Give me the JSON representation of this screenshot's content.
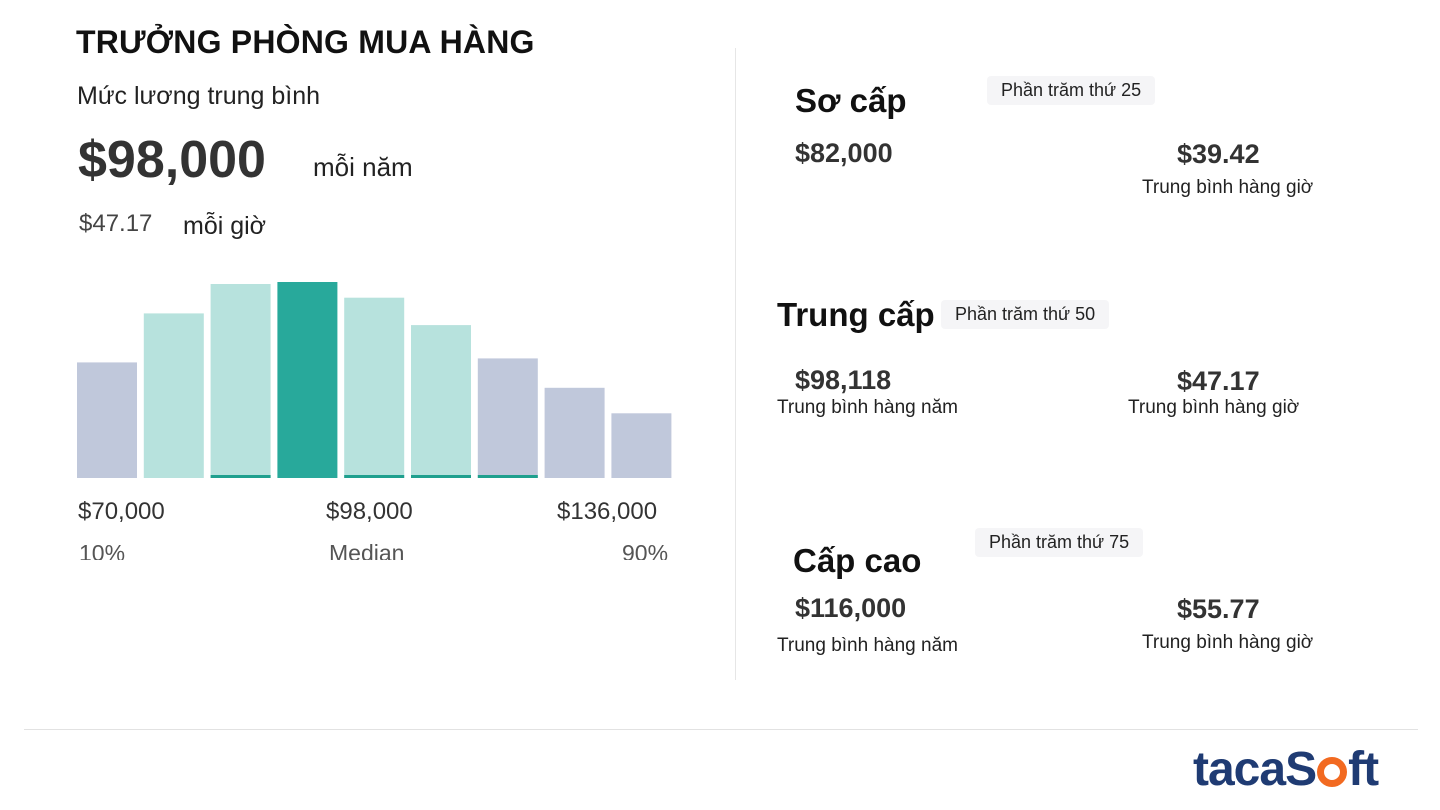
{
  "job_title": "TRƯỞNG PHÒNG MUA HÀNG",
  "summary": {
    "label": "Mức lương trung bình",
    "annual_value": "$98,000",
    "annual_unit": "mỗi năm",
    "hourly_value": "$47.17",
    "hourly_unit": "mỗi giờ"
  },
  "chart_data": {
    "type": "bar",
    "title": "",
    "categories": [
      "1",
      "2",
      "3",
      "4",
      "5",
      "6",
      "7",
      "8",
      "9"
    ],
    "values": [
      0.59,
      0.84,
      0.99,
      1.0,
      0.92,
      0.78,
      0.61,
      0.46,
      0.33
    ],
    "highlight_index": 3,
    "x_ticks": [
      {
        "value": "$70,000",
        "label": "10%"
      },
      {
        "value": "$98,000",
        "label": "Median"
      },
      {
        "value": "$136,000",
        "label": "90%"
      }
    ],
    "colors": {
      "outer": "#c0c8db",
      "inner": "#b7e2dd",
      "median": "#28a99b",
      "underline": "#1fa08e"
    },
    "grid": false,
    "legend": "none"
  },
  "levels": [
    {
      "title": "Sơ cấp",
      "badge": "Phần trăm thứ 25",
      "annual": "$82,000",
      "annual_caption": "",
      "hourly": "$39.42",
      "hourly_caption": "Trung bình hàng giờ"
    },
    {
      "title": "Trung cấp",
      "badge": "Phần trăm thứ 50",
      "annual": "$98,118",
      "annual_caption": "Trung bình hàng năm",
      "hourly": "$47.17",
      "hourly_caption": "Trung bình hàng giờ"
    },
    {
      "title": "Cấp cao",
      "badge": "Phần trăm thứ 75",
      "annual": "$116,000",
      "annual_caption": "Trung bình hàng năm",
      "hourly": "$55.77",
      "hourly_caption": "Trung bình hàng giờ"
    }
  ],
  "logo": {
    "part1": "taca",
    "part2": "S",
    "part3": "ft",
    "colors": {
      "text": "#1f3b73",
      "accent": "#f26a21"
    }
  }
}
